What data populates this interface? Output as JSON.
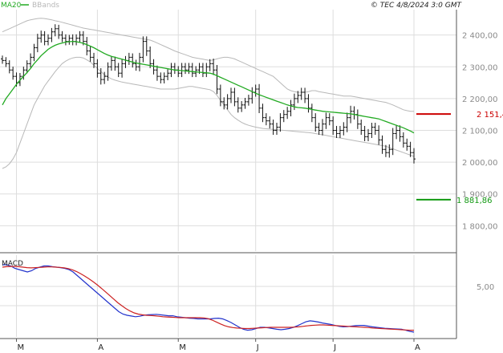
{
  "header": {
    "legend": [
      {
        "label": "MA20",
        "color": "#22aa22"
      },
      {
        "label": "BBands",
        "color": "#b8b8b8"
      }
    ],
    "copyright": "© TEC 4/8/2024 3:0 GMT"
  },
  "colors": {
    "candle": "#111111",
    "ma20": "#22aa22",
    "bbands": "#b8b8b8",
    "grid": "#dddddd",
    "resistance": "#cc0000",
    "support": "#119911",
    "macd": "#2233cc",
    "signal": "#cc2222"
  },
  "chart_data": [
    {
      "type": "ohlc",
      "xlabels": [
        "M",
        "A",
        "M",
        "J",
        "J",
        "A"
      ],
      "xlabel_index": [
        4,
        27,
        50,
        72,
        94,
        117
      ],
      "ylabel": "",
      "ylim": [
        1720,
        2480
      ],
      "y_ticks": [
        1800,
        1900,
        2000,
        2100,
        2200,
        2300,
        2400
      ],
      "y_tick_labels": [
        "1 800,00",
        "1 900,00",
        "2 000,00",
        "2 100,00",
        "2 200,00",
        "2 300,00",
        "2 400,00"
      ],
      "grid": true,
      "legend": "top-left",
      "resistance": {
        "value": 2151.4,
        "label": "2 151,4"
      },
      "support": {
        "value": 1881.86,
        "label": "1 881,86"
      },
      "closes": [
        2320,
        2310,
        2290,
        2270,
        2250,
        2270,
        2290,
        2310,
        2330,
        2360,
        2390,
        2400,
        2380,
        2390,
        2410,
        2420,
        2400,
        2390,
        2380,
        2390,
        2380,
        2390,
        2400,
        2380,
        2350,
        2330,
        2310,
        2280,
        2260,
        2270,
        2300,
        2320,
        2300,
        2280,
        2310,
        2320,
        2330,
        2310,
        2300,
        2330,
        2380,
        2350,
        2310,
        2290,
        2270,
        2260,
        2270,
        2280,
        2300,
        2290,
        2280,
        2300,
        2290,
        2300,
        2280,
        2290,
        2300,
        2280,
        2300,
        2310,
        2290,
        2230,
        2190,
        2180,
        2200,
        2220,
        2190,
        2170,
        2180,
        2190,
        2200,
        2220,
        2230,
        2170,
        2140,
        2130,
        2120,
        2100,
        2110,
        2140,
        2150,
        2160,
        2180,
        2200,
        2210,
        2220,
        2200,
        2170,
        2140,
        2110,
        2100,
        2120,
        2140,
        2130,
        2100,
        2090,
        2100,
        2110,
        2140,
        2160,
        2150,
        2120,
        2100,
        2080,
        2090,
        2110,
        2100,
        2070,
        2040,
        2030,
        2040,
        2090,
        2100,
        2080,
        2060,
        2050,
        2030,
        2010
      ],
      "ranges": [
        30,
        30,
        30,
        30,
        35,
        30,
        30,
        30,
        35,
        35,
        40,
        40,
        35,
        35,
        35,
        40,
        35,
        35,
        35,
        30,
        35,
        35,
        35,
        35,
        40,
        40,
        40,
        40,
        45,
        40,
        40,
        35,
        35,
        35,
        40,
        40,
        40,
        35,
        35,
        40,
        45,
        45,
        40,
        40,
        40,
        35,
        35,
        35,
        35,
        35,
        35,
        35,
        35,
        35,
        35,
        35,
        35,
        35,
        35,
        40,
        45,
        45,
        40,
        40,
        40,
        40,
        40,
        40,
        35,
        35,
        35,
        45,
        40,
        45,
        40,
        40,
        40,
        40,
        40,
        40,
        40,
        40,
        45,
        45,
        40,
        40,
        40,
        40,
        40,
        40,
        40,
        45,
        45,
        40,
        40,
        40,
        40,
        45,
        45,
        50,
        45,
        45,
        40,
        40,
        40,
        40,
        40,
        45,
        40,
        40,
        45,
        50,
        50,
        45,
        40,
        40,
        40,
        40
      ],
      "ma20": [
        2180,
        2200,
        2215,
        2230,
        2245,
        2258,
        2270,
        2282,
        2295,
        2310,
        2322,
        2335,
        2345,
        2355,
        2362,
        2368,
        2372,
        2375,
        2378,
        2379,
        2380,
        2379,
        2377,
        2374,
        2370,
        2365,
        2360,
        2354,
        2348,
        2342,
        2337,
        2333,
        2330,
        2327,
        2324,
        2321,
        2318,
        2315,
        2312,
        2310,
        2308,
        2306,
        2304,
        2302,
        2300,
        2298,
        2296,
        2294,
        2292,
        2290,
        2289,
        2288,
        2287,
        2286,
        2285,
        2284,
        2283,
        2282,
        2281,
        2280,
        2277,
        2272,
        2267,
        2262,
        2257,
        2252,
        2247,
        2242,
        2237,
        2232,
        2227,
        2222,
        2217,
        2212,
        2208,
        2204,
        2200,
        2196,
        2192,
        2188,
        2184,
        2180,
        2177,
        2174,
        2172,
        2171,
        2170,
        2168,
        2166,
        2164,
        2162,
        2160,
        2159,
        2158,
        2157,
        2156,
        2155,
        2154,
        2153,
        2152,
        2150,
        2148,
        2146,
        2144,
        2142,
        2140,
        2138,
        2136,
        2132,
        2128,
        2124,
        2120,
        2116,
        2112,
        2108,
        2103,
        2098,
        2092
      ],
      "bb_upper": [
        2410,
        2415,
        2420,
        2425,
        2430,
        2435,
        2440,
        2445,
        2448,
        2450,
        2452,
        2453,
        2452,
        2450,
        2448,
        2445,
        2443,
        2440,
        2437,
        2434,
        2431,
        2428,
        2425,
        2422,
        2420,
        2418,
        2416,
        2414,
        2412,
        2410,
        2408,
        2406,
        2404,
        2402,
        2400,
        2398,
        2396,
        2394,
        2392,
        2390,
        2388,
        2386,
        2384,
        2380,
        2375,
        2370,
        2365,
        2360,
        2355,
        2350,
        2346,
        2342,
        2338,
        2334,
        2330,
        2328,
        2326,
        2324,
        2322,
        2320,
        2322,
        2325,
        2328,
        2330,
        2330,
        2328,
        2325,
        2320,
        2315,
        2310,
        2305,
        2300,
        2295,
        2290,
        2285,
        2280,
        2275,
        2270,
        2260,
        2250,
        2240,
        2230,
        2225,
        2222,
        2220,
        2220,
        2220,
        2222,
        2225,
        2225,
        2222,
        2220,
        2218,
        2216,
        2214,
        2212,
        2210,
        2208,
        2208,
        2208,
        2206,
        2204,
        2202,
        2200,
        2198,
        2196,
        2194,
        2192,
        2190,
        2188,
        2184,
        2180,
        2175,
        2170,
        2165,
        2162,
        2160,
        2160
      ],
      "bb_lower": [
        1980,
        1985,
        1995,
        2010,
        2030,
        2060,
        2090,
        2120,
        2150,
        2180,
        2200,
        2220,
        2240,
        2255,
        2270,
        2285,
        2298,
        2310,
        2318,
        2324,
        2328,
        2330,
        2330,
        2328,
        2322,
        2315,
        2305,
        2295,
        2285,
        2275,
        2268,
        2262,
        2258,
        2255,
        2252,
        2250,
        2248,
        2246,
        2244,
        2242,
        2240,
        2238,
        2236,
        2234,
        2232,
        2230,
        2230,
        2230,
        2230,
        2230,
        2232,
        2234,
        2236,
        2238,
        2238,
        2236,
        2234,
        2232,
        2230,
        2228,
        2222,
        2210,
        2195,
        2180,
        2165,
        2150,
        2140,
        2132,
        2125,
        2120,
        2116,
        2113,
        2110,
        2108,
        2106,
        2105,
        2104,
        2103,
        2102,
        2101,
        2100,
        2099,
        2098,
        2097,
        2096,
        2095,
        2094,
        2093,
        2092,
        2090,
        2088,
        2086,
        2084,
        2082,
        2080,
        2078,
        2076,
        2074,
        2072,
        2070,
        2068,
        2066,
        2064,
        2062,
        2060,
        2058,
        2056,
        2054,
        2052,
        2050,
        2046,
        2042,
        2038,
        2034,
        2030,
        2026,
        2022,
        2018
      ]
    },
    {
      "type": "line",
      "title": "MACD",
      "ylim": [
        -16,
        18
      ],
      "y_ticks": [
        5
      ],
      "y_tick_labels": [
        "5,00"
      ],
      "grid": true,
      "series": [
        {
          "values": [
            14.0,
            14.0,
            13.5,
            12.5,
            12.0,
            11.5,
            11.0,
            11.5,
            12.5,
            13.0,
            13.5,
            13.5,
            13.2,
            13.0,
            12.8,
            12.5,
            12.0,
            11.0,
            9.5,
            8.0,
            6.5,
            5.0,
            3.5,
            2.0,
            0.5,
            -1.0,
            -2.5,
            -4.0,
            -5.5,
            -6.5,
            -7.0,
            -7.3,
            -7.6,
            -7.4,
            -7.0,
            -6.8,
            -6.7,
            -6.6,
            -6.8,
            -7.0,
            -7.2,
            -7.2,
            -7.6,
            -7.8,
            -8.0,
            -8.2,
            -8.3,
            -8.5,
            -8.5,
            -8.5,
            -8.5,
            -8.3,
            -8.2,
            -8.5,
            -9.2,
            -10.0,
            -11.0,
            -12.0,
            -12.8,
            -13.2,
            -13.0,
            -12.5,
            -12.0,
            -12.0,
            -12.2,
            -12.5,
            -12.8,
            -13.0,
            -12.8,
            -12.5,
            -12.0,
            -11.3,
            -10.5,
            -9.7,
            -9.3,
            -9.5,
            -9.8,
            -10.2,
            -10.5,
            -10.8,
            -11.2,
            -11.6,
            -11.8,
            -11.7,
            -11.5,
            -11.3,
            -11.2,
            -11.2,
            -11.5,
            -11.8,
            -12.0,
            -12.2,
            -12.4,
            -12.5,
            -12.6,
            -12.7,
            -12.8,
            -13.2,
            -13.7,
            -14.0
          ],
          "color": "#2233cc"
        },
        {
          "values": [
            13.0,
            13.2,
            13.3,
            13.3,
            13.2,
            13.0,
            12.8,
            12.7,
            12.8,
            12.9,
            13.0,
            13.1,
            13.1,
            13.0,
            12.9,
            12.7,
            12.4,
            11.9,
            11.2,
            10.3,
            9.3,
            8.2,
            7.0,
            5.7,
            4.3,
            2.8,
            1.3,
            -0.2,
            -1.7,
            -3.0,
            -4.2,
            -5.2,
            -6.0,
            -6.5,
            -6.8,
            -7.0,
            -7.1,
            -7.2,
            -7.4,
            -7.6,
            -7.7,
            -7.8,
            -7.9,
            -8.0,
            -8.0,
            -8.0,
            -8.0,
            -8.0,
            -8.0,
            -8.1,
            -8.4,
            -9.0,
            -9.8,
            -10.6,
            -11.3,
            -11.8,
            -12.1,
            -12.3,
            -12.4,
            -12.5,
            -12.5,
            -12.4,
            -12.3,
            -12.2,
            -12.1,
            -12.0,
            -12.0,
            -12.0,
            -12.0,
            -12.0,
            -12.0,
            -11.9,
            -11.8,
            -11.6,
            -11.4,
            -11.2,
            -11.1,
            -11.0,
            -11.0,
            -11.1,
            -11.2,
            -11.3,
            -11.4,
            -11.5,
            -11.6,
            -11.7,
            -11.8,
            -11.9,
            -12.0,
            -12.1,
            -12.3,
            -12.4,
            -12.5,
            -12.6,
            -12.7,
            -12.8,
            -12.9,
            -13.0,
            -13.1,
            -13.2,
            -13.2
          ],
          "color": "#cc2222"
        }
      ]
    }
  ]
}
